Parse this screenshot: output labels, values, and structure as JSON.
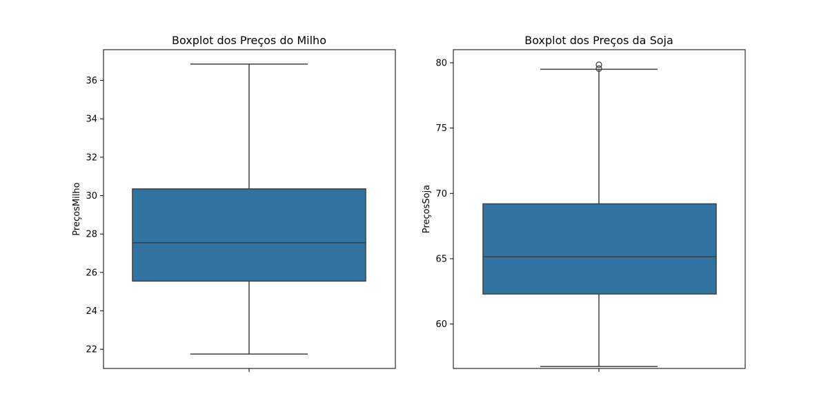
{
  "chart_data": [
    {
      "type": "boxplot",
      "title": "Boxplot dos Preços do Milho",
      "xlabel": "",
      "ylabel": "PreçosMilho",
      "ylim": [
        21.0,
        37.6
      ],
      "yticks": [
        22,
        24,
        26,
        28,
        30,
        32,
        34,
        36
      ],
      "box": {
        "whisker_low": 21.75,
        "q1": 25.55,
        "median": 27.55,
        "q3": 30.35,
        "whisker_high": 36.85
      },
      "outliers": [],
      "color": "#3274a1",
      "grid": false
    },
    {
      "type": "boxplot",
      "title": "Boxplot dos Preços da Soja",
      "xlabel": "",
      "ylabel": "PreçosSoja",
      "ylim": [
        56.6,
        81.0
      ],
      "yticks": [
        60,
        65,
        70,
        75,
        80
      ],
      "box": {
        "whisker_low": 56.75,
        "q1": 62.3,
        "median": 65.15,
        "q3": 69.2,
        "whisker_high": 79.5
      },
      "outliers": [
        79.55,
        79.85
      ],
      "color": "#3274a1",
      "grid": false
    }
  ]
}
